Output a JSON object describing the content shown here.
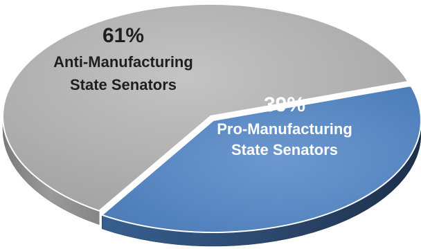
{
  "chart_data": {
    "type": "pie",
    "style": "3d",
    "title": "",
    "slices": [
      {
        "value": 61,
        "pct_label": "61%",
        "label_lines": [
          "Anti-Manufacturing",
          "State Senators"
        ],
        "color": "#a6a6a6",
        "side_color": "#8c8c8c",
        "label_color": "#1f1f1f"
      },
      {
        "value": 39,
        "pct_label": "39%",
        "label_lines": [
          "Pro-Manufacturing",
          "State Senators"
        ],
        "color": "#4f81bd",
        "side_color": "#2c4a70",
        "label_color": "#ffffff"
      }
    ]
  }
}
